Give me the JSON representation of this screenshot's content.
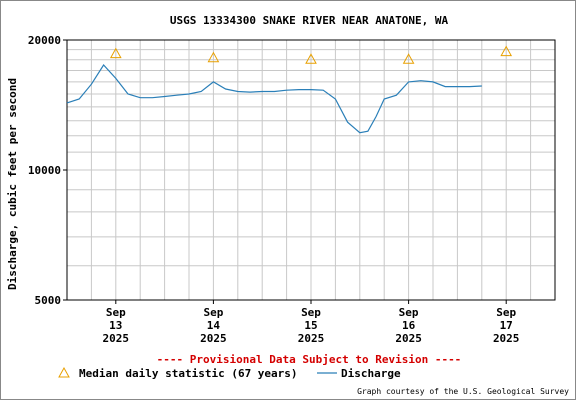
{
  "chart_data": {
    "type": "line",
    "title": "USGS 13334300 SNAKE RIVER NEAR ANATONE, WA",
    "ylabel": "Discharge, cubic feet per second",
    "xlabel": "",
    "ylim": [
      5000,
      20000
    ],
    "yscale": "log",
    "yticks": [
      5000,
      10000,
      20000
    ],
    "grid": true,
    "x_ticks": [
      {
        "day": 13,
        "line1": "Sep",
        "line2": "13",
        "line3": "2025"
      },
      {
        "day": 14,
        "line1": "Sep",
        "line2": "14",
        "line3": "2025"
      },
      {
        "day": 15,
        "line1": "Sep",
        "line2": "15",
        "line3": "2025"
      },
      {
        "day": 16,
        "line1": "Sep",
        "line2": "16",
        "line3": "2025"
      },
      {
        "day": 17,
        "line1": "Sep",
        "line2": "17",
        "line3": "2025"
      }
    ],
    "xlim": [
      "2025-09-12T12:00",
      "2025-09-17T12:00"
    ],
    "series": [
      {
        "name": "Discharge",
        "color": "#2a7fb8",
        "points": [
          [
            "2025-09-12T12:00",
            14300
          ],
          [
            "2025-09-12T15:00",
            14600
          ],
          [
            "2025-09-12T18:00",
            15800
          ],
          [
            "2025-09-12T21:00",
            17500
          ],
          [
            "2025-09-13T00:00",
            16300
          ],
          [
            "2025-09-13T03:00",
            15000
          ],
          [
            "2025-09-13T06:00",
            14700
          ],
          [
            "2025-09-13T09:00",
            14700
          ],
          [
            "2025-09-13T12:00",
            14800
          ],
          [
            "2025-09-13T15:00",
            14900
          ],
          [
            "2025-09-13T18:00",
            15000
          ],
          [
            "2025-09-13T21:00",
            15200
          ],
          [
            "2025-09-14T00:00",
            16000
          ],
          [
            "2025-09-14T03:00",
            15400
          ],
          [
            "2025-09-14T06:00",
            15200
          ],
          [
            "2025-09-14T09:00",
            15150
          ],
          [
            "2025-09-14T12:00",
            15200
          ],
          [
            "2025-09-14T15:00",
            15200
          ],
          [
            "2025-09-14T18:00",
            15300
          ],
          [
            "2025-09-14T21:00",
            15350
          ],
          [
            "2025-09-15T00:00",
            15350
          ],
          [
            "2025-09-15T03:00",
            15300
          ],
          [
            "2025-09-15T06:00",
            14600
          ],
          [
            "2025-09-15T09:00",
            12900
          ],
          [
            "2025-09-15T12:00",
            12200
          ],
          [
            "2025-09-15T14:00",
            12300
          ],
          [
            "2025-09-15T16:00",
            13300
          ],
          [
            "2025-09-15T18:00",
            14600
          ],
          [
            "2025-09-15T21:00",
            14900
          ],
          [
            "2025-09-16T00:00",
            16000
          ],
          [
            "2025-09-16T03:00",
            16100
          ],
          [
            "2025-09-16T06:00",
            16000
          ],
          [
            "2025-09-16T09:00",
            15600
          ],
          [
            "2025-09-16T12:00",
            15600
          ],
          [
            "2025-09-16T15:00",
            15600
          ],
          [
            "2025-09-16T18:00",
            15650
          ]
        ]
      },
      {
        "name": "Median daily statistic (67 years)",
        "marker": "triangle",
        "color": "#e8a000",
        "points": [
          [
            "2025-09-13T00:00",
            18600
          ],
          [
            "2025-09-14T00:00",
            18200
          ],
          [
            "2025-09-15T00:00",
            18050
          ],
          [
            "2025-09-16T00:00",
            18050
          ],
          [
            "2025-09-17T00:00",
            18800
          ]
        ]
      }
    ]
  },
  "notice": "---- Provisional Data Subject to Revision ----",
  "legend": {
    "median_label": "Median daily statistic (67 years)",
    "discharge_label": "Discharge"
  },
  "credit": "Graph courtesy of the U.S. Geological Survey"
}
